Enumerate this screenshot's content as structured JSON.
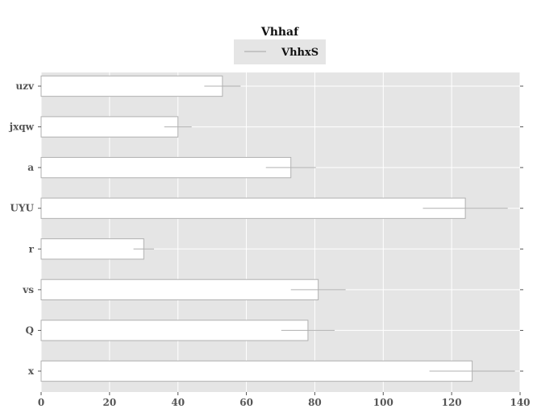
{
  "chart_data": {
    "type": "bar",
    "orientation": "horizontal",
    "title": "Vhhaf",
    "xlabel": "",
    "ylabel": "",
    "categories": [
      "uzv",
      "jxqw",
      "a",
      "UYU",
      "r",
      "vs",
      "Q",
      "x"
    ],
    "series": [
      {
        "name": "VhhxS",
        "values": [
          53,
          40,
          73,
          124,
          30,
          81,
          78,
          126
        ],
        "errors": [
          5.3,
          4.0,
          7.3,
          12.4,
          3.0,
          8.0,
          7.8,
          12.5
        ]
      }
    ],
    "xlim": [
      0,
      140
    ],
    "xticks": [
      0,
      20,
      40,
      60,
      80,
      100,
      120,
      140
    ],
    "grid": true,
    "legend_position": "top-center",
    "colors": {
      "plot_background": "#e5e5e5",
      "grid": "#ffffff",
      "bar_fill": "#ffffff",
      "bar_edge": "#b0b0b0",
      "errorbar": "#b0b0b0"
    }
  }
}
